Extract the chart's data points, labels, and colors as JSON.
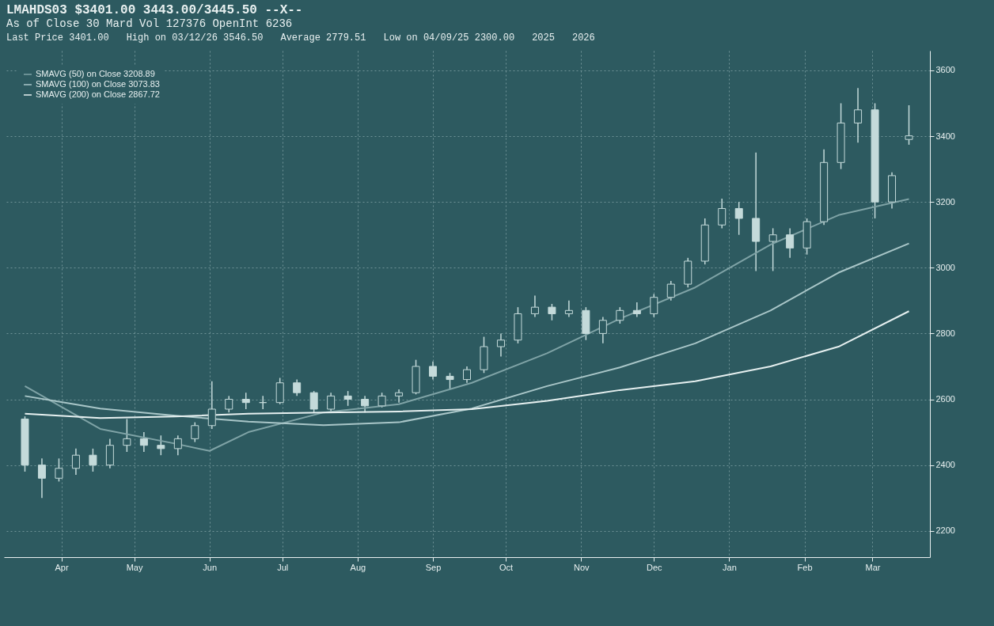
{
  "chart_data": {
    "type": "candlestick",
    "title": "LMAHDS03 $3401.00 3443.00/3445.50 --X--",
    "subtitle": "As of Close 30 Mard Vol 127376 OpenInt 6236",
    "annotations": [
      "Last Price 3401.00",
      "High on 03/12/26 3546.50",
      "Average 2779.51",
      "Low on 04/09/25 2300.00",
      "2025",
      "2026"
    ],
    "color": "#c4dada",
    "x": [
      "2025-03-31",
      "2025-04-07",
      "2025-04-14",
      "2025-04-21",
      "2025-04-28",
      "2025-05-05",
      "2025-05-12",
      "2025-05-19",
      "2025-05-26",
      "2025-06-02",
      "2025-06-09",
      "2025-06-16",
      "2025-06-23",
      "2025-06-30",
      "2025-07-07",
      "2025-07-14",
      "2025-07-21",
      "2025-07-28",
      "2025-08-04",
      "2025-08-11",
      "2025-08-18",
      "2025-08-25",
      "2025-09-01",
      "2025-09-08",
      "2025-09-15",
      "2025-09-22",
      "2025-09-29",
      "2025-10-06",
      "2025-10-13",
      "2025-10-20",
      "2025-10-27",
      "2025-11-03",
      "2025-11-10",
      "2025-11-17",
      "2025-11-24",
      "2025-12-01",
      "2025-12-08",
      "2025-12-15",
      "2025-12-22",
      "2025-12-29",
      "2026-01-05",
      "2026-01-12",
      "2026-01-19",
      "2026-01-26",
      "2026-02-02",
      "2026-02-09",
      "2026-02-16",
      "2026-02-23",
      "2026-03-02",
      "2026-03-09",
      "2026-03-16",
      "2026-03-23",
      "2026-03-30"
    ],
    "ohlc": [
      [
        2540,
        2548,
        2380,
        2400
      ],
      [
        2400,
        2420,
        2300,
        2360
      ],
      [
        2360,
        2420,
        2350,
        2390
      ],
      [
        2390,
        2450,
        2370,
        2430
      ],
      [
        2430,
        2450,
        2380,
        2400
      ],
      [
        2400,
        2480,
        2390,
        2460
      ],
      [
        2460,
        2540,
        2440,
        2480
      ],
      [
        2480,
        2500,
        2440,
        2460
      ],
      [
        2460,
        2490,
        2430,
        2450
      ],
      [
        2450,
        2490,
        2430,
        2480
      ],
      [
        2480,
        2530,
        2470,
        2520
      ],
      [
        2520,
        2655,
        2510,
        2570
      ],
      [
        2570,
        2610,
        2560,
        2600
      ],
      [
        2600,
        2620,
        2570,
        2590
      ],
      [
        2590,
        2610,
        2570,
        2590
      ],
      [
        2590,
        2665,
        2585,
        2650
      ],
      [
        2650,
        2660,
        2610,
        2620
      ],
      [
        2620,
        2625,
        2560,
        2570
      ],
      [
        2570,
        2620,
        2560,
        2610
      ],
      [
        2610,
        2625,
        2580,
        2600
      ],
      [
        2600,
        2610,
        2560,
        2580
      ],
      [
        2580,
        2620,
        2575,
        2610
      ],
      [
        2610,
        2630,
        2590,
        2620
      ],
      [
        2620,
        2720,
        2615,
        2700
      ],
      [
        2700,
        2715,
        2660,
        2670
      ],
      [
        2670,
        2680,
        2630,
        2660
      ],
      [
        2660,
        2700,
        2650,
        2690
      ],
      [
        2690,
        2790,
        2680,
        2760
      ],
      [
        2760,
        2800,
        2730,
        2780
      ],
      [
        2780,
        2880,
        2770,
        2860
      ],
      [
        2860,
        2915,
        2850,
        2880
      ],
      [
        2880,
        2890,
        2840,
        2860
      ],
      [
        2860,
        2900,
        2850,
        2870
      ],
      [
        2870,
        2880,
        2780,
        2800
      ],
      [
        2800,
        2850,
        2770,
        2840
      ],
      [
        2840,
        2880,
        2830,
        2870
      ],
      [
        2870,
        2895,
        2850,
        2860
      ],
      [
        2860,
        2920,
        2850,
        2910
      ],
      [
        2910,
        2960,
        2900,
        2950
      ],
      [
        2950,
        3030,
        2940,
        3020
      ],
      [
        3020,
        3150,
        3010,
        3130
      ],
      [
        3130,
        3210,
        3120,
        3180
      ],
      [
        3180,
        3200,
        3100,
        3150
      ],
      [
        3150,
        3350,
        2990,
        3080
      ],
      [
        3080,
        3120,
        2990,
        3100
      ],
      [
        3100,
        3120,
        3030,
        3060
      ],
      [
        3060,
        3150,
        3040,
        3140
      ],
      [
        3140,
        3360,
        3130,
        3320
      ],
      [
        3320,
        3500,
        3300,
        3440
      ],
      [
        3440,
        3546.5,
        3380,
        3480
      ],
      [
        3480,
        3500,
        3150,
        3200
      ],
      [
        3200,
        3290,
        3180,
        3280
      ],
      [
        3390,
        3494,
        3374,
        3401
      ]
    ],
    "series": [
      {
        "name": "SMAVG (50) on Close 3208.89",
        "type": "line",
        "color": "#7fa3a6",
        "x": [
          "2025-03-31",
          "2025-05-01",
          "2025-06-01",
          "2025-06-15",
          "2025-07-01",
          "2025-08-01",
          "2025-09-01",
          "2025-10-01",
          "2025-11-01",
          "2025-12-01",
          "2026-01-01",
          "2026-02-01",
          "2026-03-01",
          "2026-03-30"
        ],
        "values": [
          2640,
          2510,
          2465,
          2443,
          2500,
          2560,
          2585,
          2650,
          2740,
          2845,
          2940,
          3070,
          3160,
          3208.89
        ]
      },
      {
        "name": "SMAVG (100) on Close 3073.83",
        "type": "line",
        "color": "#a9c6c8",
        "x": [
          "2025-03-31",
          "2025-05-01",
          "2025-06-01",
          "2025-07-01",
          "2025-08-01",
          "2025-09-01",
          "2025-10-01",
          "2025-11-01",
          "2025-12-01",
          "2026-01-01",
          "2026-02-01",
          "2026-03-01",
          "2026-03-30"
        ],
        "values": [
          2610,
          2572,
          2550,
          2532,
          2521,
          2530,
          2572,
          2640,
          2697,
          2770,
          2870,
          2985,
          3073.83
        ]
      },
      {
        "name": "SMAVG (200) on Close 2867.72",
        "type": "line",
        "color": "#e6f0f0",
        "x": [
          "2025-03-31",
          "2025-05-01",
          "2025-06-01",
          "2025-07-01",
          "2025-08-01",
          "2025-09-01",
          "2025-10-01",
          "2025-11-01",
          "2025-12-01",
          "2026-01-01",
          "2026-02-01",
          "2026-03-01",
          "2026-03-30"
        ],
        "values": [
          2556,
          2543,
          2548,
          2556,
          2560,
          2563,
          2570,
          2595,
          2628,
          2655,
          2700,
          2760,
          2867.72
        ]
      }
    ],
    "xlim": [
      "2025-03-24",
      "2026-04-06"
    ],
    "xticks": [
      {
        "value": "2025-04-15",
        "label": "Apr"
      },
      {
        "value": "2025-05-15",
        "label": "May"
      },
      {
        "value": "2025-06-15",
        "label": "Jun"
      },
      {
        "value": "2025-07-15",
        "label": "Jul"
      },
      {
        "value": "2025-08-15",
        "label": "Aug"
      },
      {
        "value": "2025-09-15",
        "label": "Sep"
      },
      {
        "value": "2025-10-15",
        "label": "Oct"
      },
      {
        "value": "2025-11-15",
        "label": "Nov"
      },
      {
        "value": "2025-12-15",
        "label": "Dec"
      },
      {
        "value": "2026-01-15",
        "label": "Jan"
      },
      {
        "value": "2026-02-15",
        "label": "Feb"
      },
      {
        "value": "2026-03-15",
        "label": "Mar"
      }
    ],
    "ylim": [
      2120,
      3660
    ],
    "yticks": [
      2200,
      2400,
      2600,
      2800,
      3000,
      3200,
      3400,
      3600
    ],
    "grid": true,
    "legend": "top left",
    "line_style": "solid",
    "marker": "none"
  }
}
